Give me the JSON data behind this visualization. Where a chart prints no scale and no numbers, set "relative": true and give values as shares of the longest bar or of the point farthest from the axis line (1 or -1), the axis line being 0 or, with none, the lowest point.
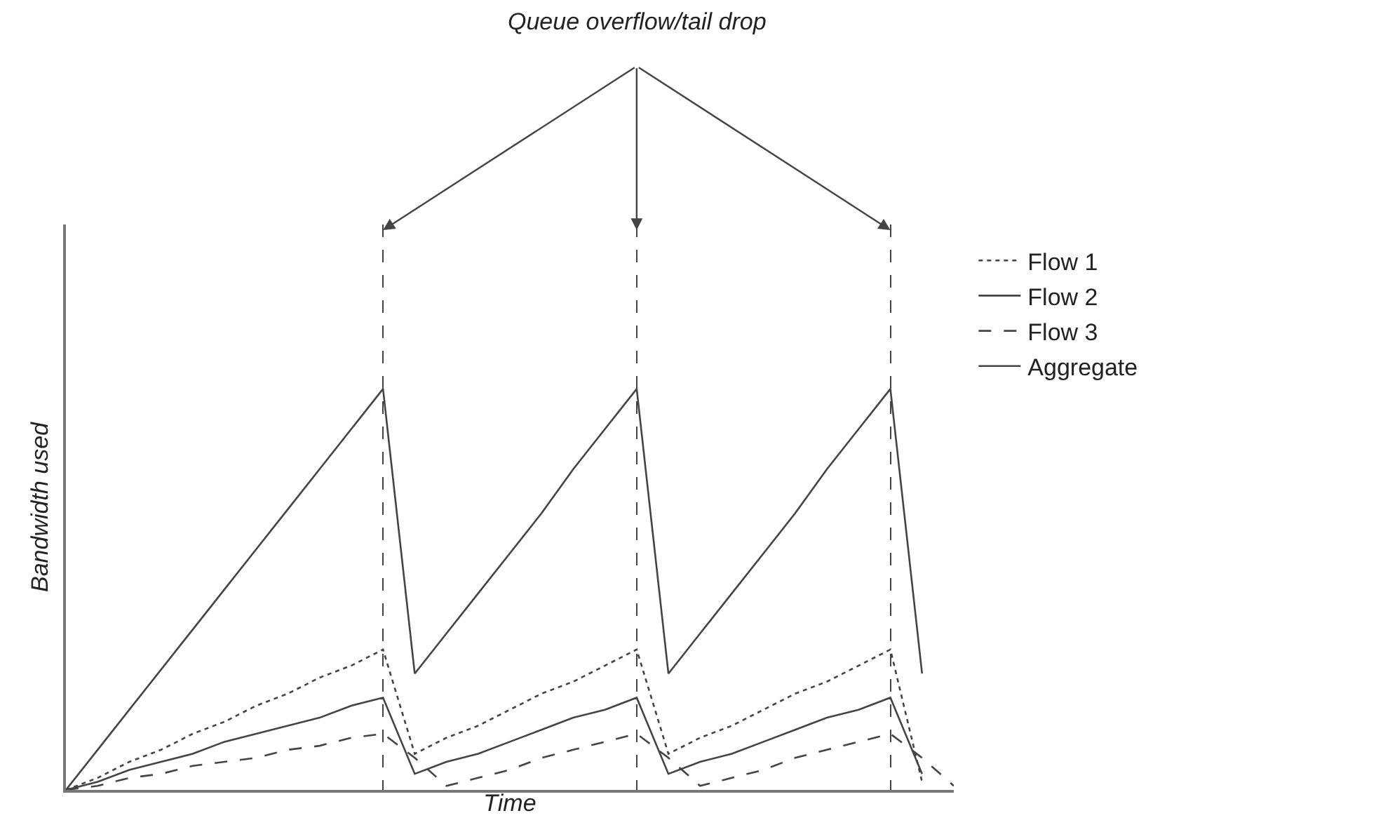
{
  "chart_data": {
    "type": "line",
    "relative": true,
    "title": "Queue overflow/tail drop",
    "xlabel": "Time",
    "ylabel": "Bandwidth used",
    "categories": [
      null,
      null,
      null,
      null,
      null,
      null,
      null,
      null,
      null,
      null,
      null,
      null,
      null,
      null,
      null,
      null,
      null,
      null,
      null,
      null,
      null,
      null,
      null,
      null,
      null,
      null,
      null,
      null,
      null
    ],
    "tick_labels": false,
    "grid": "x",
    "legend": "right",
    "marker": "none",
    "series": [
      {
        "name": "Flow 1",
        "color": "#444444",
        "line_style": "dotted",
        "values": [
          0,
          0.03,
          0.07,
          0.1,
          0.14,
          0.17,
          0.21,
          0.24,
          0.28,
          0.31,
          0.35,
          0.09,
          0.13,
          0.16,
          0.2,
          0.24,
          0.27,
          0.31,
          0.35,
          0.09,
          0.13,
          0.16,
          0.2,
          0.24,
          0.27,
          0.31,
          0.35,
          0.02,
          null
        ]
      },
      {
        "name": "Flow 2",
        "color": "#444444",
        "line_style": "solid",
        "values": [
          0,
          0.02,
          0.05,
          0.07,
          0.09,
          0.12,
          0.14,
          0.16,
          0.18,
          0.21,
          0.23,
          0.04,
          0.07,
          0.09,
          0.12,
          0.15,
          0.18,
          0.2,
          0.23,
          0.04,
          0.07,
          0.09,
          0.12,
          0.15,
          0.18,
          0.2,
          0.23,
          0.04,
          null
        ]
      },
      {
        "name": "Flow 3",
        "color": "#444444",
        "line_style": "dashed",
        "values": [
          0,
          0.01,
          0.03,
          0.04,
          0.06,
          0.07,
          0.08,
          0.1,
          0.11,
          0.13,
          0.14,
          0.08,
          0.01,
          0.03,
          0.05,
          0.08,
          0.1,
          0.12,
          0.14,
          0.08,
          0.01,
          0.03,
          0.05,
          0.08,
          0.1,
          0.12,
          0.14,
          0.08,
          0.01
        ]
      },
      {
        "name": "Aggregate",
        "color": "#444444",
        "line_style": "solid",
        "values": [
          0,
          0.1,
          0.2,
          0.3,
          0.4,
          0.5,
          0.6,
          0.7,
          0.8,
          0.9,
          1,
          0.29,
          0.39,
          0.49,
          0.59,
          0.69,
          0.8,
          0.9,
          1,
          0.29,
          0.39,
          0.49,
          0.59,
          0.69,
          0.8,
          0.9,
          1,
          0.29,
          null
        ]
      }
    ]
  }
}
